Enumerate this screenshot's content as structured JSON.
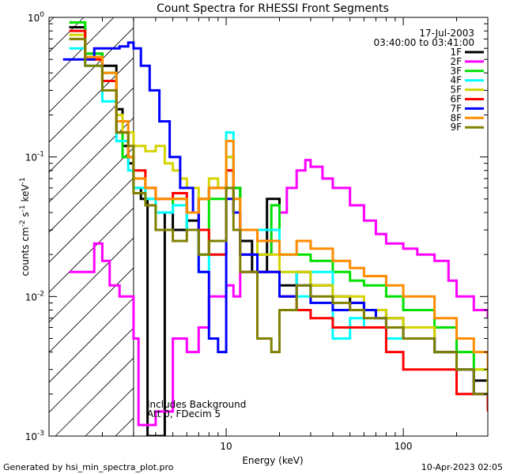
{
  "chart_data": {
    "type": "line",
    "title": "Count Spectra for RHESSI Front Segments",
    "xlabel": "Energy (keV)",
    "ylabel_parts": {
      "base": "counts cm",
      "exp1": "-2",
      "mid1": " s",
      "exp2": "-1",
      "mid2": " keV",
      "exp3": "-1"
    },
    "x_scale": "log",
    "y_scale": "log",
    "xlim": [
      1.0,
      300.0
    ],
    "ylim": [
      0.001,
      1.0
    ],
    "x_ticks": [
      {
        "value": 10,
        "label": "10"
      },
      {
        "value": 100,
        "label": "100"
      }
    ],
    "y_ticks": [
      {
        "value": 1.0,
        "base": "10",
        "exp": "0"
      },
      {
        "value": 0.1,
        "base": "10",
        "exp": "-1"
      },
      {
        "value": 0.01,
        "base": "10",
        "exp": "-2"
      },
      {
        "value": 0.001,
        "base": "10",
        "exp": "-3"
      }
    ],
    "shaded_region": {
      "x": [
        1.0,
        3.0
      ],
      "style": "diagonal hatch"
    },
    "legend_position": "top-right",
    "date": "17-Jul-2003",
    "time_range": "03:40:00 to 03:41:00",
    "annotations": [
      "Includes Background",
      "Att 0, FDecim 5"
    ],
    "series": [
      {
        "name": "1F",
        "color": "#000000",
        "points": [
          [
            1.3,
            0.85
          ],
          [
            1.6,
            0.55
          ],
          [
            2.0,
            0.45
          ],
          [
            2.4,
            0.22
          ],
          [
            2.6,
            0.12
          ],
          [
            2.8,
            0.09
          ],
          [
            3.0,
            0.06
          ],
          [
            3.3,
            0.05
          ],
          [
            3.6,
            0.001
          ],
          [
            4.0,
            0.001
          ],
          [
            4.5,
            0.04
          ],
          [
            5.0,
            0.03
          ],
          [
            6,
            0.035
          ],
          [
            7,
            0.05
          ],
          [
            8,
            0.06
          ],
          [
            10,
            0.08
          ],
          [
            11,
            0.06
          ],
          [
            12,
            0.025
          ],
          [
            14,
            0.015
          ],
          [
            17,
            0.05
          ],
          [
            20,
            0.012
          ],
          [
            25,
            0.015
          ],
          [
            30,
            0.012
          ],
          [
            40,
            0.01
          ],
          [
            50,
            0.009
          ],
          [
            60,
            0.008
          ],
          [
            80,
            0.007
          ],
          [
            100,
            0.006
          ],
          [
            150,
            0.004
          ],
          [
            200,
            0.003
          ],
          [
            250,
            0.0025
          ],
          [
            300,
            0.002
          ]
        ]
      },
      {
        "name": "2F",
        "color": "#ff00ff",
        "points": [
          [
            1.3,
            0.015
          ],
          [
            1.6,
            0.015
          ],
          [
            1.8,
            0.024
          ],
          [
            2.0,
            0.018
          ],
          [
            2.2,
            0.012
          ],
          [
            2.5,
            0.01
          ],
          [
            3.0,
            0.005
          ],
          [
            3.2,
            0.0012
          ],
          [
            4.0,
            0.0015
          ],
          [
            5.0,
            0.005
          ],
          [
            6.0,
            0.004
          ],
          [
            7.0,
            0.006
          ],
          [
            8.0,
            0.01
          ],
          [
            9.0,
            0.01
          ],
          [
            10.0,
            0.012
          ],
          [
            11,
            0.01
          ],
          [
            12,
            0.015
          ],
          [
            15,
            0.02
          ],
          [
            18,
            0.03
          ],
          [
            20,
            0.04
          ],
          [
            22,
            0.06
          ],
          [
            25,
            0.08
          ],
          [
            28,
            0.095
          ],
          [
            30,
            0.085
          ],
          [
            35,
            0.07
          ],
          [
            40,
            0.06
          ],
          [
            50,
            0.045
          ],
          [
            60,
            0.035
          ],
          [
            70,
            0.028
          ],
          [
            80,
            0.024
          ],
          [
            100,
            0.022
          ],
          [
            120,
            0.02
          ],
          [
            150,
            0.018
          ],
          [
            180,
            0.013
          ],
          [
            200,
            0.01
          ],
          [
            250,
            0.008
          ],
          [
            300,
            0.007
          ]
        ]
      },
      {
        "name": "3F",
        "color": "#00e000",
        "points": [
          [
            1.3,
            0.92
          ],
          [
            1.6,
            0.55
          ],
          [
            2.0,
            0.4
          ],
          [
            2.4,
            0.15
          ],
          [
            2.6,
            0.1
          ],
          [
            3.0,
            0.07
          ],
          [
            3.5,
            0.05
          ],
          [
            4.0,
            0.04
          ],
          [
            5.0,
            0.05
          ],
          [
            6,
            0.03
          ],
          [
            7,
            0.02
          ],
          [
            8,
            0.05
          ],
          [
            10,
            0.1
          ],
          [
            11,
            0.06
          ],
          [
            12,
            0.03
          ],
          [
            15,
            0.02
          ],
          [
            18,
            0.045
          ],
          [
            20,
            0.02
          ],
          [
            25,
            0.02
          ],
          [
            30,
            0.018
          ],
          [
            40,
            0.015
          ],
          [
            50,
            0.013
          ],
          [
            60,
            0.012
          ],
          [
            80,
            0.01
          ],
          [
            100,
            0.008
          ],
          [
            150,
            0.006
          ],
          [
            200,
            0.004
          ],
          [
            250,
            0.003
          ],
          [
            300,
            0.003
          ]
        ]
      },
      {
        "name": "4F",
        "color": "#00ffff",
        "points": [
          [
            1.3,
            0.6
          ],
          [
            1.6,
            0.45
          ],
          [
            2.0,
            0.25
          ],
          [
            2.4,
            0.13
          ],
          [
            2.8,
            0.08
          ],
          [
            3.0,
            0.06
          ],
          [
            3.5,
            0.05
          ],
          [
            4.0,
            0.04
          ],
          [
            5.0,
            0.045
          ],
          [
            6,
            0.03
          ],
          [
            7,
            0.015
          ],
          [
            8,
            0.02
          ],
          [
            10,
            0.15
          ],
          [
            11,
            0.05
          ],
          [
            12,
            0.02
          ],
          [
            15,
            0.03
          ],
          [
            20,
            0.015
          ],
          [
            25,
            0.01
          ],
          [
            30,
            0.015
          ],
          [
            40,
            0.005
          ],
          [
            50,
            0.007
          ],
          [
            60,
            0.006
          ],
          [
            80,
            0.005
          ],
          [
            100,
            0.005
          ],
          [
            150,
            0.004
          ],
          [
            200,
            0.003
          ],
          [
            250,
            0.002
          ],
          [
            300,
            0.002
          ]
        ]
      },
      {
        "name": "5F",
        "color": "#d4d400",
        "points": [
          [
            1.3,
            0.75
          ],
          [
            1.6,
            0.5
          ],
          [
            2.0,
            0.35
          ],
          [
            2.4,
            0.2
          ],
          [
            2.6,
            0.15
          ],
          [
            3.0,
            0.12
          ],
          [
            3.5,
            0.11
          ],
          [
            4.0,
            0.12
          ],
          [
            4.5,
            0.09
          ],
          [
            5.0,
            0.08
          ],
          [
            5.5,
            0.07
          ],
          [
            6.0,
            0.06
          ],
          [
            7.0,
            0.05
          ],
          [
            8.0,
            0.07
          ],
          [
            9.0,
            0.06
          ],
          [
            10,
            0.1
          ],
          [
            11,
            0.05
          ],
          [
            12,
            0.03
          ],
          [
            15,
            0.02
          ],
          [
            20,
            0.015
          ],
          [
            30,
            0.012
          ],
          [
            40,
            0.01
          ],
          [
            60,
            0.008
          ],
          [
            80,
            0.007
          ],
          [
            100,
            0.006
          ],
          [
            150,
            0.004
          ],
          [
            200,
            0.003
          ],
          [
            300,
            0.002
          ]
        ]
      },
      {
        "name": "6F",
        "color": "#ff0000",
        "points": [
          [
            1.3,
            0.8
          ],
          [
            1.6,
            0.5
          ],
          [
            2.0,
            0.35
          ],
          [
            2.4,
            0.15
          ],
          [
            2.8,
            0.1
          ],
          [
            3.0,
            0.08
          ],
          [
            3.5,
            0.06
          ],
          [
            4.0,
            0.05
          ],
          [
            5.0,
            0.055
          ],
          [
            6,
            0.04
          ],
          [
            7,
            0.03
          ],
          [
            8,
            0.02
          ],
          [
            10,
            0.08
          ],
          [
            11,
            0.04
          ],
          [
            12,
            0.02
          ],
          [
            15,
            0.015
          ],
          [
            20,
            0.01
          ],
          [
            25,
            0.008
          ],
          [
            30,
            0.007
          ],
          [
            40,
            0.006
          ],
          [
            60,
            0.006
          ],
          [
            80,
            0.004
          ],
          [
            100,
            0.003
          ],
          [
            150,
            0.003
          ],
          [
            200,
            0.002
          ],
          [
            250,
            0.002
          ],
          [
            300,
            0.0015
          ]
        ]
      },
      {
        "name": "7F",
        "color": "#0000ff",
        "points": [
          [
            1.2,
            0.5
          ],
          [
            1.6,
            0.5
          ],
          [
            1.8,
            0.6
          ],
          [
            2.5,
            0.62
          ],
          [
            2.8,
            0.66
          ],
          [
            3.0,
            0.6
          ],
          [
            3.3,
            0.45
          ],
          [
            3.7,
            0.3
          ],
          [
            4.2,
            0.18
          ],
          [
            4.8,
            0.1
          ],
          [
            5.5,
            0.06
          ],
          [
            6.5,
            0.04
          ],
          [
            7,
            0.015
          ],
          [
            8,
            0.005
          ],
          [
            9,
            0.004
          ],
          [
            10,
            0.05
          ],
          [
            11,
            0.04
          ],
          [
            12,
            0.02
          ],
          [
            15,
            0.015
          ],
          [
            20,
            0.01
          ],
          [
            25,
            0.012
          ],
          [
            30,
            0.009
          ],
          [
            40,
            0.008
          ],
          [
            50,
            0.009
          ],
          [
            60,
            0.008
          ],
          [
            70,
            0.007
          ],
          [
            80,
            0.006
          ],
          [
            100,
            0.005
          ],
          [
            150,
            0.004
          ],
          [
            200,
            0.003
          ],
          [
            250,
            0.002
          ],
          [
            300,
            0.002
          ]
        ]
      },
      {
        "name": "8F",
        "color": "#ff8c00",
        "points": [
          [
            1.3,
            0.7
          ],
          [
            1.6,
            0.52
          ],
          [
            2.0,
            0.4
          ],
          [
            2.4,
            0.18
          ],
          [
            2.8,
            0.1
          ],
          [
            3.0,
            0.07
          ],
          [
            3.5,
            0.06
          ],
          [
            4.0,
            0.05
          ],
          [
            5.0,
            0.05
          ],
          [
            6,
            0.04
          ],
          [
            7,
            0.05
          ],
          [
            8,
            0.06
          ],
          [
            10,
            0.13
          ],
          [
            11,
            0.05
          ],
          [
            12,
            0.03
          ],
          [
            15,
            0.025
          ],
          [
            20,
            0.02
          ],
          [
            25,
            0.025
          ],
          [
            30,
            0.022
          ],
          [
            40,
            0.018
          ],
          [
            50,
            0.016
          ],
          [
            60,
            0.014
          ],
          [
            80,
            0.012
          ],
          [
            100,
            0.01
          ],
          [
            150,
            0.007
          ],
          [
            200,
            0.005
          ],
          [
            250,
            0.004
          ],
          [
            300,
            0.003
          ]
        ]
      },
      {
        "name": "9F",
        "color": "#808000",
        "points": [
          [
            1.3,
            0.7
          ],
          [
            1.6,
            0.45
          ],
          [
            2.0,
            0.3
          ],
          [
            2.4,
            0.15
          ],
          [
            2.8,
            0.12
          ],
          [
            3.0,
            0.055
          ],
          [
            3.5,
            0.045
          ],
          [
            4.0,
            0.03
          ],
          [
            5.0,
            0.025
          ],
          [
            6,
            0.03
          ],
          [
            7,
            0.02
          ],
          [
            8,
            0.025
          ],
          [
            10,
            0.06
          ],
          [
            11,
            0.03
          ],
          [
            12,
            0.015
          ],
          [
            15,
            0.005
          ],
          [
            18,
            0.004
          ],
          [
            20,
            0.008
          ],
          [
            25,
            0.012
          ],
          [
            30,
            0.01
          ],
          [
            40,
            0.009
          ],
          [
            50,
            0.008
          ],
          [
            60,
            0.007
          ],
          [
            80,
            0.006
          ],
          [
            100,
            0.005
          ],
          [
            150,
            0.004
          ],
          [
            200,
            0.003
          ],
          [
            250,
            0.002
          ],
          [
            300,
            0.002
          ]
        ]
      }
    ]
  },
  "footer": {
    "left": "Generated by hsi_min_spectra_plot.pro",
    "right": "10-Apr-2023 02:05"
  }
}
